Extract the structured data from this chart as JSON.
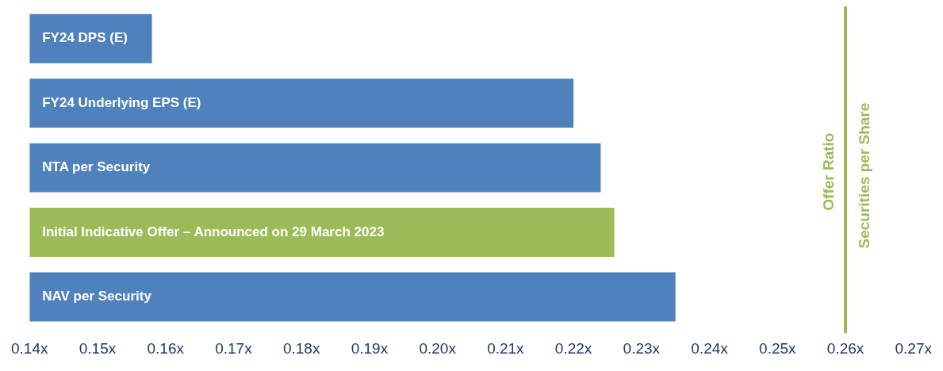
{
  "chart_data": {
    "type": "bar",
    "orientation": "horizontal",
    "categories": [
      "FY24 DPS (E)",
      "FY24 Underlying EPS (E)",
      "NTA per Security",
      "Initial Indicative Offer – Announced on 29 March 2023",
      "NAV per Security"
    ],
    "values": [
      0.158,
      0.22,
      0.224,
      0.226,
      0.235
    ],
    "colors": [
      "#4f81bd",
      "#4f81bd",
      "#4f81bd",
      "#9bbb59",
      "#4f81bd"
    ],
    "xlim": [
      0.14,
      0.27
    ],
    "xticks": [
      {
        "value": 0.14,
        "label": "0.14x"
      },
      {
        "value": 0.15,
        "label": "0.15x"
      },
      {
        "value": 0.16,
        "label": "0.16x"
      },
      {
        "value": 0.17,
        "label": "0.17x"
      },
      {
        "value": 0.18,
        "label": "0.18x"
      },
      {
        "value": 0.19,
        "label": "0.19x"
      },
      {
        "value": 0.2,
        "label": "0.20x"
      },
      {
        "value": 0.21,
        "label": "0.21x"
      },
      {
        "value": 0.22,
        "label": "0.22x"
      },
      {
        "value": 0.23,
        "label": "0.23x"
      },
      {
        "value": 0.24,
        "label": "0.24x"
      },
      {
        "value": 0.25,
        "label": "0.25x"
      },
      {
        "value": 0.26,
        "label": "0.26x"
      },
      {
        "value": 0.27,
        "label": "0.27x"
      }
    ],
    "ref_lines": [
      {
        "axis": "x",
        "value": 0.26,
        "label": "Offer Ratio\nSecurities per Share",
        "color": "#9bbb59"
      }
    ],
    "grid": false,
    "legend": false,
    "tick_labels": "x"
  }
}
